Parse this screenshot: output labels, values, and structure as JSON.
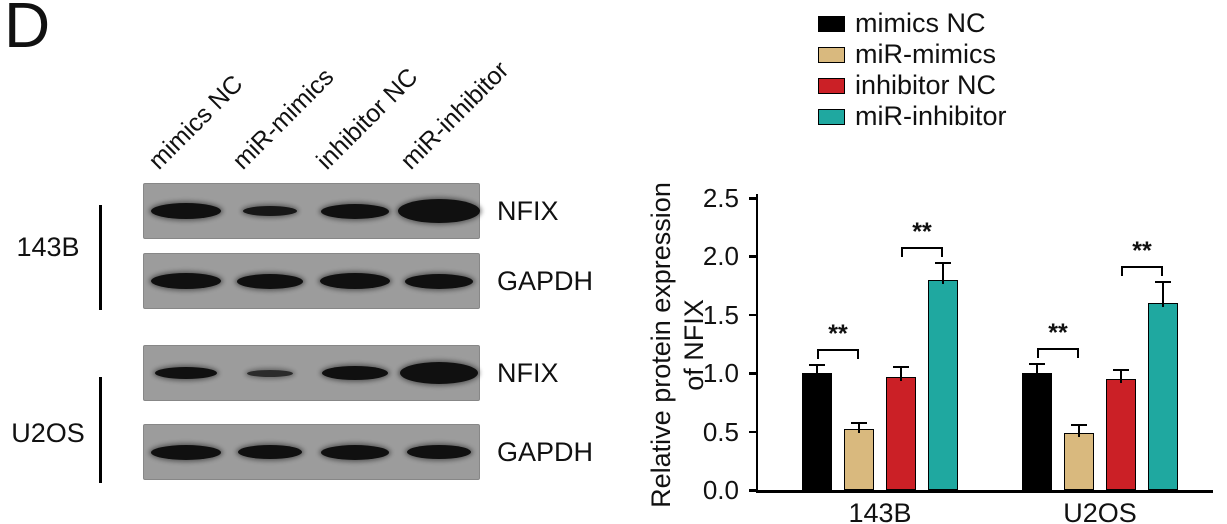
{
  "panel_label": "D",
  "blot": {
    "lane_labels": [
      "mimics NC",
      "miR-mimics",
      "inhibitor NC",
      "miR-inhibitor"
    ],
    "groups": [
      {
        "name": "143B",
        "rows": [
          {
            "protein": "NFIX",
            "bands": [
              {
                "w": 70,
                "h": 16,
                "o": 1
              },
              {
                "w": 54,
                "h": 10,
                "o": 0.95
              },
              {
                "w": 68,
                "h": 15,
                "o": 1
              },
              {
                "w": 82,
                "h": 24,
                "o": 1
              }
            ]
          },
          {
            "protein": "GAPDH",
            "bands": [
              {
                "w": 70,
                "h": 16,
                "o": 1
              },
              {
                "w": 66,
                "h": 15,
                "o": 1
              },
              {
                "w": 70,
                "h": 16,
                "o": 1
              },
              {
                "w": 68,
                "h": 15,
                "o": 1
              }
            ]
          }
        ]
      },
      {
        "name": "U2OS",
        "rows": [
          {
            "protein": "NFIX",
            "bands": [
              {
                "w": 62,
                "h": 12,
                "o": 1
              },
              {
                "w": 46,
                "h": 7,
                "o": 0.8
              },
              {
                "w": 66,
                "h": 14,
                "o": 1
              },
              {
                "w": 78,
                "h": 22,
                "o": 1
              }
            ]
          },
          {
            "protein": "GAPDH",
            "bands": [
              {
                "w": 70,
                "h": 15,
                "o": 1
              },
              {
                "w": 64,
                "h": 14,
                "o": 1
              },
              {
                "w": 68,
                "h": 15,
                "o": 1
              },
              {
                "w": 64,
                "h": 14,
                "o": 1
              }
            ]
          }
        ]
      }
    ]
  },
  "chart_data": {
    "type": "bar",
    "title": "",
    "xlabel": "",
    "ylabel": "Relative protein expression of NFIX",
    "ylabel_lines": [
      "Relative protein expression",
      "of NFIX"
    ],
    "ylim": [
      0,
      2.5
    ],
    "yticks": [
      0,
      0.5,
      1.0,
      1.5,
      2.0,
      2.5
    ],
    "grid": false,
    "legend_position": "top-right",
    "categories": [
      "143B",
      "U2OS"
    ],
    "series": [
      {
        "name": "mimics NC",
        "color": "#000000",
        "values": [
          1.0,
          1.0
        ],
        "errors": [
          0.07,
          0.08
        ]
      },
      {
        "name": "miR-mimics",
        "color": "#D9B97E",
        "values": [
          0.52,
          0.49
        ],
        "errors": [
          0.05,
          0.07
        ]
      },
      {
        "name": "inhibitor NC",
        "color": "#CB2026",
        "values": [
          0.97,
          0.95
        ],
        "errors": [
          0.08,
          0.08
        ]
      },
      {
        "name": "miR-inhibitor",
        "color": "#1FA8A0",
        "values": [
          1.8,
          1.6
        ],
        "errors": [
          0.14,
          0.18
        ]
      }
    ],
    "significance": [
      {
        "group": "143B",
        "between": [
          "mimics NC",
          "miR-mimics"
        ],
        "label": "**"
      },
      {
        "group": "143B",
        "between": [
          "inhibitor NC",
          "miR-inhibitor"
        ],
        "label": "**"
      },
      {
        "group": "U2OS",
        "between": [
          "mimics NC",
          "miR-mimics"
        ],
        "label": "**"
      },
      {
        "group": "U2OS",
        "between": [
          "inhibitor NC",
          "miR-inhibitor"
        ],
        "label": "**"
      }
    ]
  }
}
